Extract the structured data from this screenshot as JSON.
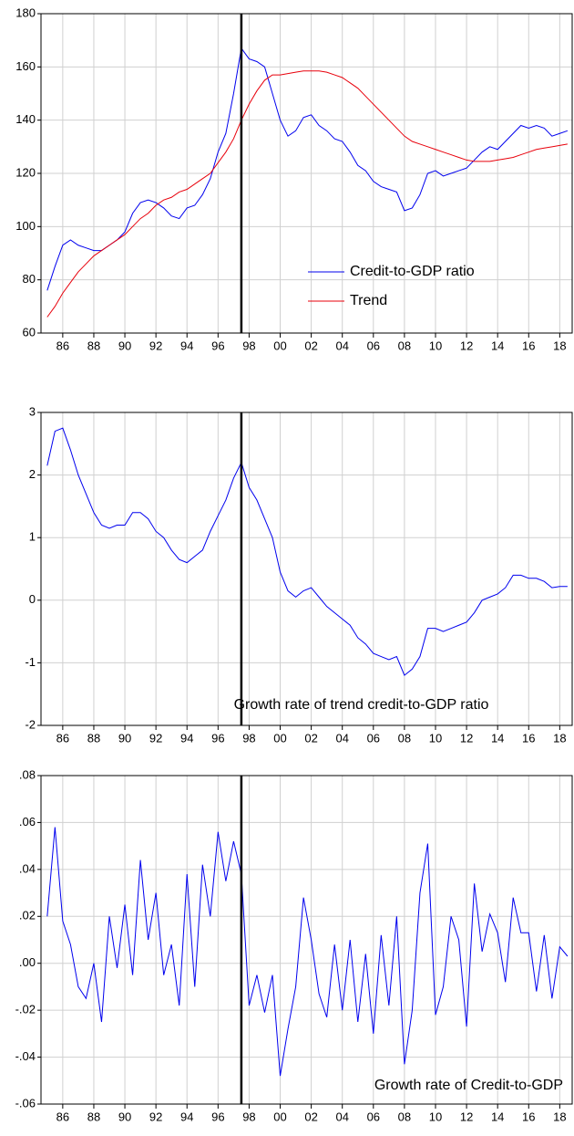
{
  "chart_data": [
    {
      "type": "line",
      "x": [
        1985,
        1985.5,
        1986,
        1986.5,
        1987,
        1987.5,
        1988,
        1988.5,
        1989,
        1989.5,
        1990,
        1990.5,
        1991,
        1991.5,
        1992,
        1992.5,
        1993,
        1993.5,
        1994,
        1994.5,
        1995,
        1995.5,
        1996,
        1996.5,
        1997,
        1997.5,
        1998,
        1998.5,
        1999,
        1999.5,
        2000,
        2000.5,
        2001,
        2001.5,
        2002,
        2002.5,
        2003,
        2003.5,
        2004,
        2004.5,
        2005,
        2005.5,
        2006,
        2006.5,
        2007,
        2007.5,
        2008,
        2008.5,
        2009,
        2009.5,
        2010,
        2010.5,
        2011,
        2011.5,
        2012,
        2012.5,
        2013,
        2013.5,
        2014,
        2014.5,
        2015,
        2015.5,
        2016,
        2016.5,
        2017,
        2017.5,
        2018,
        2018.5
      ],
      "series": [
        {
          "name": "Credit-to-GDP ratio",
          "color": "#0000ee",
          "values": [
            76,
            85,
            93,
            95,
            93,
            92,
            91,
            91,
            93,
            95,
            98,
            105,
            109,
            110,
            109,
            107,
            104,
            103,
            107,
            108,
            112,
            118,
            128,
            135,
            150,
            167,
            163,
            162,
            160,
            150,
            140,
            134,
            136,
            141,
            142,
            138,
            136,
            133,
            132,
            128,
            123,
            121,
            117,
            115,
            114,
            113,
            106,
            107,
            112,
            120,
            121,
            119,
            120,
            121,
            122,
            125,
            128,
            130,
            129,
            132,
            135,
            138,
            137,
            138,
            137,
            134,
            135,
            136
          ]
        },
        {
          "name": "Trend",
          "color": "#e8000b",
          "values": [
            66,
            70,
            75,
            79,
            83,
            86,
            89,
            91,
            93,
            95,
            97,
            100,
            103,
            105,
            108,
            110,
            111,
            113,
            114,
            116,
            118,
            120,
            124,
            128,
            133,
            140,
            146,
            151,
            155,
            157,
            157,
            157.5,
            158,
            158.5,
            158.5,
            158.5,
            158,
            157,
            156,
            154,
            152,
            149,
            146,
            143,
            140,
            137,
            134,
            132,
            131,
            130,
            129,
            128,
            127,
            126,
            125,
            124.5,
            124.5,
            124.5,
            125,
            125.5,
            126,
            127,
            128,
            129,
            129.5,
            130,
            130.5,
            131
          ]
        }
      ],
      "xlim": [
        1984.6,
        2018.8
      ],
      "xticks": [
        {
          "value": 1986,
          "label": "86"
        },
        {
          "value": 1988,
          "label": "88"
        },
        {
          "value": 1990,
          "label": "90"
        },
        {
          "value": 1992,
          "label": "92"
        },
        {
          "value": 1994,
          "label": "94"
        },
        {
          "value": 1996,
          "label": "96"
        },
        {
          "value": 1998,
          "label": "98"
        },
        {
          "value": 2000,
          "label": "00"
        },
        {
          "value": 2002,
          "label": "02"
        },
        {
          "value": 2004,
          "label": "04"
        },
        {
          "value": 2006,
          "label": "06"
        },
        {
          "value": 2008,
          "label": "08"
        },
        {
          "value": 2010,
          "label": "10"
        },
        {
          "value": 2012,
          "label": "12"
        },
        {
          "value": 2014,
          "label": "14"
        },
        {
          "value": 2016,
          "label": "16"
        },
        {
          "value": 2018,
          "label": "18"
        }
      ],
      "ylim": [
        60,
        180
      ],
      "yticks": [
        60,
        80,
        100,
        120,
        140,
        160,
        180
      ],
      "grid": true,
      "vline": 1997.5,
      "legend": "lower right"
    },
    {
      "type": "line",
      "x": [
        1985,
        1985.5,
        1986,
        1986.5,
        1987,
        1987.5,
        1988,
        1988.5,
        1989,
        1989.5,
        1990,
        1990.5,
        1991,
        1991.5,
        1992,
        1992.5,
        1993,
        1993.5,
        1994,
        1994.5,
        1995,
        1995.5,
        1996,
        1996.5,
        1997,
        1997.5,
        1998,
        1998.5,
        1999,
        1999.5,
        2000,
        2000.5,
        2001,
        2001.5,
        2002,
        2002.5,
        2003,
        2003.5,
        2004,
        2004.5,
        2005,
        2005.5,
        2006,
        2006.5,
        2007,
        2007.5,
        2008,
        2008.5,
        2009,
        2009.5,
        2010,
        2010.5,
        2011,
        2011.5,
        2012,
        2012.5,
        2013,
        2013.5,
        2014,
        2014.5,
        2015,
        2015.5,
        2016,
        2016.5,
        2017,
        2017.5,
        2018,
        2018.5
      ],
      "values": [
        2.15,
        2.7,
        2.75,
        2.4,
        2.0,
        1.7,
        1.4,
        1.2,
        1.15,
        1.2,
        1.2,
        1.4,
        1.4,
        1.3,
        1.1,
        1.0,
        0.8,
        0.65,
        0.6,
        0.7,
        0.8,
        1.1,
        1.35,
        1.6,
        1.95,
        2.2,
        1.8,
        1.6,
        1.3,
        1.0,
        0.45,
        0.15,
        0.05,
        0.15,
        0.2,
        0.05,
        -0.1,
        -0.2,
        -0.3,
        -0.4,
        -0.6,
        -0.7,
        -0.85,
        -0.9,
        -0.95,
        -0.9,
        -1.2,
        -1.1,
        -0.9,
        -0.45,
        -0.45,
        -0.5,
        -0.45,
        -0.4,
        -0.35,
        -0.2,
        0.0,
        0.05,
        0.1,
        0.2,
        0.4,
        0.4,
        0.35,
        0.35,
        0.3,
        0.2,
        0.22,
        0.22
      ],
      "color": "#0000ee",
      "xlim": [
        1984.6,
        2018.8
      ],
      "xticks": [
        {
          "value": 1986,
          "label": "86"
        },
        {
          "value": 1988,
          "label": "88"
        },
        {
          "value": 1990,
          "label": "90"
        },
        {
          "value": 1992,
          "label": "92"
        },
        {
          "value": 1994,
          "label": "94"
        },
        {
          "value": 1996,
          "label": "96"
        },
        {
          "value": 1998,
          "label": "98"
        },
        {
          "value": 2000,
          "label": "00"
        },
        {
          "value": 2002,
          "label": "02"
        },
        {
          "value": 2004,
          "label": "04"
        },
        {
          "value": 2006,
          "label": "06"
        },
        {
          "value": 2008,
          "label": "08"
        },
        {
          "value": 2010,
          "label": "10"
        },
        {
          "value": 2012,
          "label": "12"
        },
        {
          "value": 2014,
          "label": "14"
        },
        {
          "value": 2016,
          "label": "16"
        },
        {
          "value": 2018,
          "label": "18"
        }
      ],
      "ylim": [
        -2,
        3
      ],
      "yticks": [
        -2,
        -1,
        0,
        1,
        2,
        3
      ],
      "grid": true,
      "vline": 1997.5,
      "annotation": "Growth rate of trend credit-to-GDP ratio"
    },
    {
      "type": "line",
      "x": [
        1985,
        1985.5,
        1986,
        1986.5,
        1987,
        1987.5,
        1988,
        1988.5,
        1989,
        1989.5,
        1990,
        1990.5,
        1991,
        1991.5,
        1992,
        1992.5,
        1993,
        1993.5,
        1994,
        1994.5,
        1995,
        1995.5,
        1996,
        1996.5,
        1997,
        1997.5,
        1998,
        1998.5,
        1999,
        1999.5,
        2000,
        2000.5,
        2001,
        2001.5,
        2002,
        2002.5,
        2003,
        2003.5,
        2004,
        2004.5,
        2005,
        2005.5,
        2006,
        2006.5,
        2007,
        2007.5,
        2008,
        2008.5,
        2009,
        2009.5,
        2010,
        2010.5,
        2011,
        2011.5,
        2012,
        2012.5,
        2013,
        2013.5,
        2014,
        2014.5,
        2015,
        2015.5,
        2016,
        2016.5,
        2017,
        2017.5,
        2018,
        2018.5
      ],
      "values": [
        0.02,
        0.058,
        0.018,
        0.008,
        -0.01,
        -0.015,
        0.0,
        -0.025,
        0.02,
        -0.002,
        0.025,
        -0.005,
        0.044,
        0.01,
        0.03,
        -0.005,
        0.008,
        -0.018,
        0.038,
        -0.01,
        0.042,
        0.02,
        0.056,
        0.035,
        0.052,
        0.038,
        -0.018,
        -0.005,
        -0.021,
        -0.005,
        -0.048,
        -0.028,
        -0.01,
        0.028,
        0.01,
        -0.013,
        -0.023,
        0.008,
        -0.02,
        0.01,
        -0.025,
        0.004,
        -0.03,
        0.012,
        -0.018,
        0.02,
        -0.043,
        -0.02,
        0.03,
        0.051,
        -0.022,
        -0.01,
        0.02,
        0.01,
        -0.027,
        0.034,
        0.005,
        0.021,
        0.013,
        -0.008,
        0.028,
        0.013,
        0.013,
        -0.012,
        0.012,
        -0.015,
        0.007,
        0.003
      ],
      "color": "#0000ee",
      "xlim": [
        1984.6,
        2018.8
      ],
      "xticks": [
        {
          "value": 1986,
          "label": "86"
        },
        {
          "value": 1988,
          "label": "88"
        },
        {
          "value": 1990,
          "label": "90"
        },
        {
          "value": 1992,
          "label": "92"
        },
        {
          "value": 1994,
          "label": "94"
        },
        {
          "value": 1996,
          "label": "96"
        },
        {
          "value": 1998,
          "label": "98"
        },
        {
          "value": 2000,
          "label": "00"
        },
        {
          "value": 2002,
          "label": "02"
        },
        {
          "value": 2004,
          "label": "04"
        },
        {
          "value": 2006,
          "label": "06"
        },
        {
          "value": 2008,
          "label": "08"
        },
        {
          "value": 2010,
          "label": "10"
        },
        {
          "value": 2012,
          "label": "12"
        },
        {
          "value": 2014,
          "label": "14"
        },
        {
          "value": 2016,
          "label": "16"
        },
        {
          "value": 2018,
          "label": "18"
        }
      ],
      "ylim": [
        -0.06,
        0.08
      ],
      "yticks": [
        {
          "value": -0.06,
          "label": "-.06"
        },
        {
          "value": -0.04,
          "label": "-.04"
        },
        {
          "value": -0.02,
          "label": "-.02"
        },
        {
          "value": 0,
          "label": ".00"
        },
        {
          "value": 0.02,
          "label": ".02"
        },
        {
          "value": 0.04,
          "label": ".04"
        },
        {
          "value": 0.06,
          "label": ".06"
        },
        {
          "value": 0.08,
          "label": ".08"
        }
      ],
      "grid": true,
      "vline": 1997.5,
      "annotation": "Growth rate of Credit-to-GDP"
    }
  ]
}
